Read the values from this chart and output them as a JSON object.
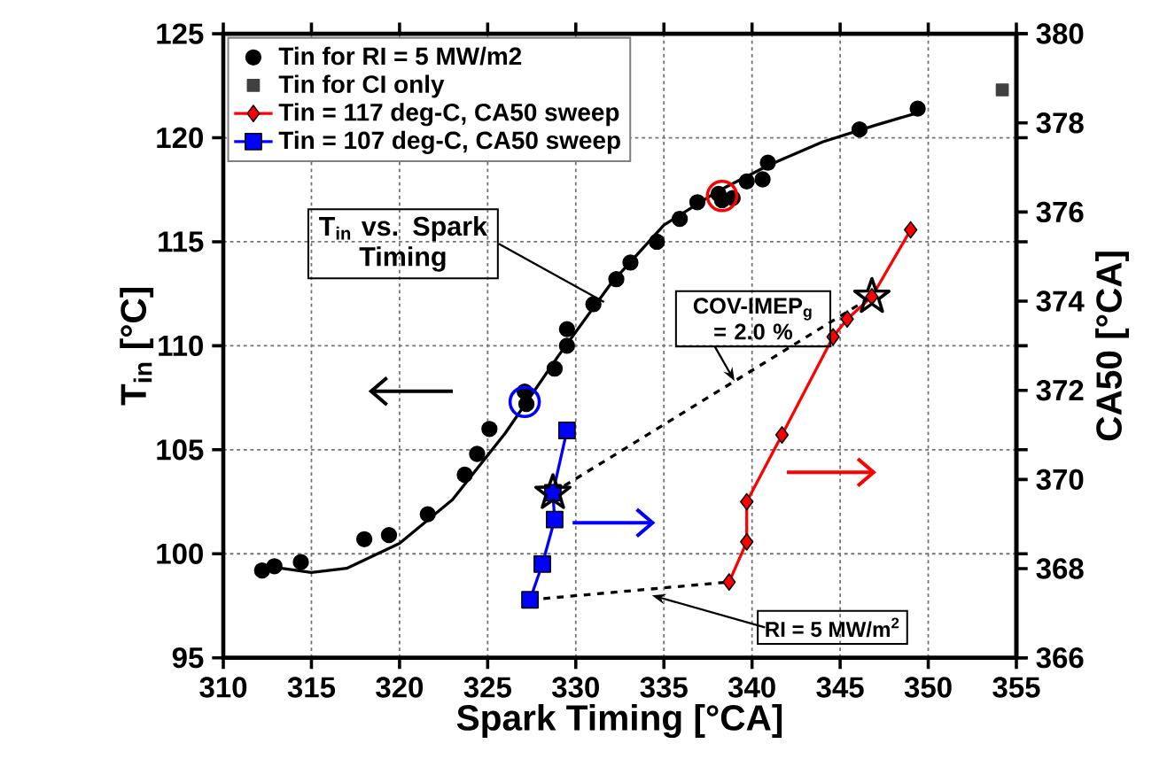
{
  "chart_data": {
    "type": "scatter",
    "xlabel": "Spark Timing [°CA]",
    "ylabel": "T$_{in}$ [°C]",
    "y2label": "CA50 [°CA]",
    "xlim": [
      310,
      355
    ],
    "xticks": [
      310,
      315,
      320,
      325,
      330,
      335,
      340,
      345,
      350,
      355
    ],
    "ylim": [
      95,
      125
    ],
    "yticks": [
      95,
      100,
      105,
      110,
      115,
      120,
      125
    ],
    "y2lim": [
      366,
      380
    ],
    "y2ticks": [
      366,
      368,
      370,
      372,
      374,
      376,
      378,
      380
    ],
    "grid": true,
    "legend": "top left",
    "series": [
      {
        "name": "Tin for RI = 5 MW/m2",
        "marker": "circle",
        "color": "#000000",
        "x": [
          312.2,
          312.9,
          314.4,
          318.0,
          319.4,
          321.6,
          323.7,
          324.4,
          325.1,
          327.2,
          327.1,
          328.8,
          329.5,
          329.5,
          331.0,
          332.3,
          333.1,
          334.6,
          335.9,
          336.9,
          338.1,
          338.3,
          338.9,
          339.7,
          340.6,
          340.9,
          346.1,
          349.4
        ],
        "values": [
          99.2,
          99.4,
          99.6,
          100.7,
          100.9,
          101.9,
          103.8,
          104.8,
          106.0,
          107.2,
          107.8,
          108.9,
          110.0,
          110.8,
          112.0,
          113.2,
          114.0,
          115.0,
          116.1,
          116.9,
          117.3,
          117.0,
          117.1,
          117.9,
          118.0,
          118.8,
          120.4,
          121.4
        ]
      },
      {
        "name": "Tin for CI only",
        "type": "scatter",
        "marker": "square",
        "color": "#404040",
        "x": [
          354.2
        ],
        "values": [
          122.3
        ]
      },
      {
        "name": "Tin = 117 deg-C, CA50 sweep",
        "type": "line",
        "marker": "diamond",
        "color": "#ff0000",
        "axis": "y2",
        "x": [
          338.7,
          339.7,
          339.7,
          341.7,
          344.6,
          345.4,
          346.8,
          349.0
        ],
        "values": [
          367.7,
          368.6,
          369.5,
          371.0,
          373.2,
          373.6,
          374.1,
          375.6
        ]
      },
      {
        "name": "Tin = 107 deg-C, CA50 sweep",
        "type": "line",
        "marker": "square",
        "color": "#0000ff",
        "axis": "y2",
        "x": [
          327.4,
          328.1,
          328.8,
          328.7,
          329.5
        ],
        "values": [
          367.3,
          368.1,
          369.1,
          369.7,
          371.1
        ]
      },
      {
        "type": "line",
        "marker": "none",
        "color": "#000000",
        "x": [
          312.5,
          315,
          317,
          320,
          323,
          326,
          329,
          332,
          335,
          338,
          341,
          344,
          347,
          349.4
        ],
        "values": [
          99.4,
          99.1,
          99.3,
          100.5,
          102.6,
          105.8,
          109.5,
          113.0,
          115.8,
          117.4,
          118.7,
          119.8,
          120.6,
          121.2
        ]
      },
      {
        "marker": "circle",
        "color": "#0000ff",
        "x": [
          327.1
        ],
        "values": [
          107.3
        ]
      },
      {
        "marker": "circle",
        "color": "#ff0000",
        "x": [
          338.3
        ],
        "values": [
          117.2
        ]
      },
      {
        "type": "line",
        "marker": "star",
        "line_style": "dashed",
        "color": "#000000",
        "axis": "y2",
        "x": [
          328.7,
          346.8
        ],
        "values": [
          369.7,
          374.1
        ]
      },
      {
        "type": "line",
        "marker": "none",
        "line_style": "dashed",
        "color": "#000000",
        "axis": "y2",
        "x": [
          327.4,
          338.7
        ],
        "values": [
          367.3,
          367.7
        ]
      }
    ],
    "annotations": [
      {
        "text": "T$_{in}$ vs. Spark Timing",
        "x": 331.6,
        "y": 112.1
      },
      "COV-IMEP$_{g}$ = 2.0 %",
      "RI = 5 MW/m$^{2}$"
    ]
  }
}
